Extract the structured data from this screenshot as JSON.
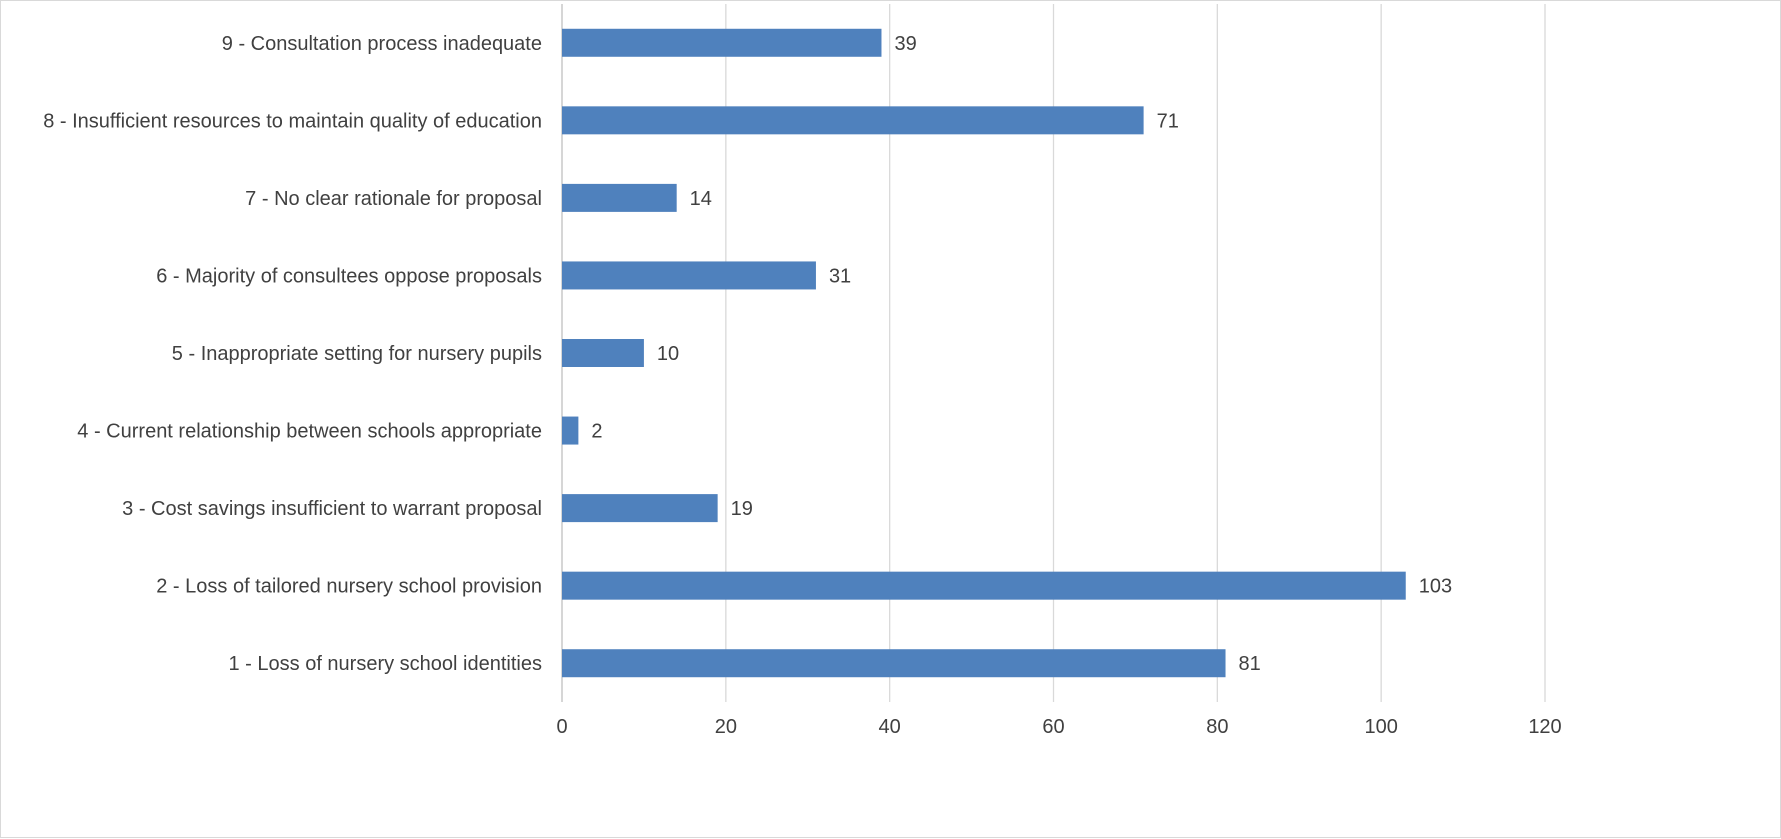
{
  "chart_data": {
    "type": "bar",
    "orientation": "horizontal",
    "title": "",
    "xlabel": "",
    "ylabel": "",
    "categories": [
      "1 - Loss of nursery school identities",
      "2 - Loss of tailored nursery school provision",
      "3 - Cost savings insufficient to warrant proposal",
      "4 - Current relationship between schools appropriate",
      "5 - Inappropriate setting for nursery pupils",
      "6 - Majority of consultees oppose proposals",
      "7 - No clear rationale for proposal",
      "8 - Insufficient resources to maintain quality of education",
      "9 - Consultation process inadequate"
    ],
    "values": [
      81,
      103,
      19,
      2,
      10,
      31,
      14,
      71,
      39
    ],
    "xlim": [
      0,
      120
    ],
    "xticks": [
      0,
      20,
      40,
      60,
      80,
      100,
      120
    ],
    "data_labels": true,
    "grid": "vertical",
    "legend": "none",
    "colors": {
      "bar": "#4f81bd",
      "grid": "#d9d9d9",
      "text": "#404040",
      "axis": "#bfbfbf"
    }
  }
}
